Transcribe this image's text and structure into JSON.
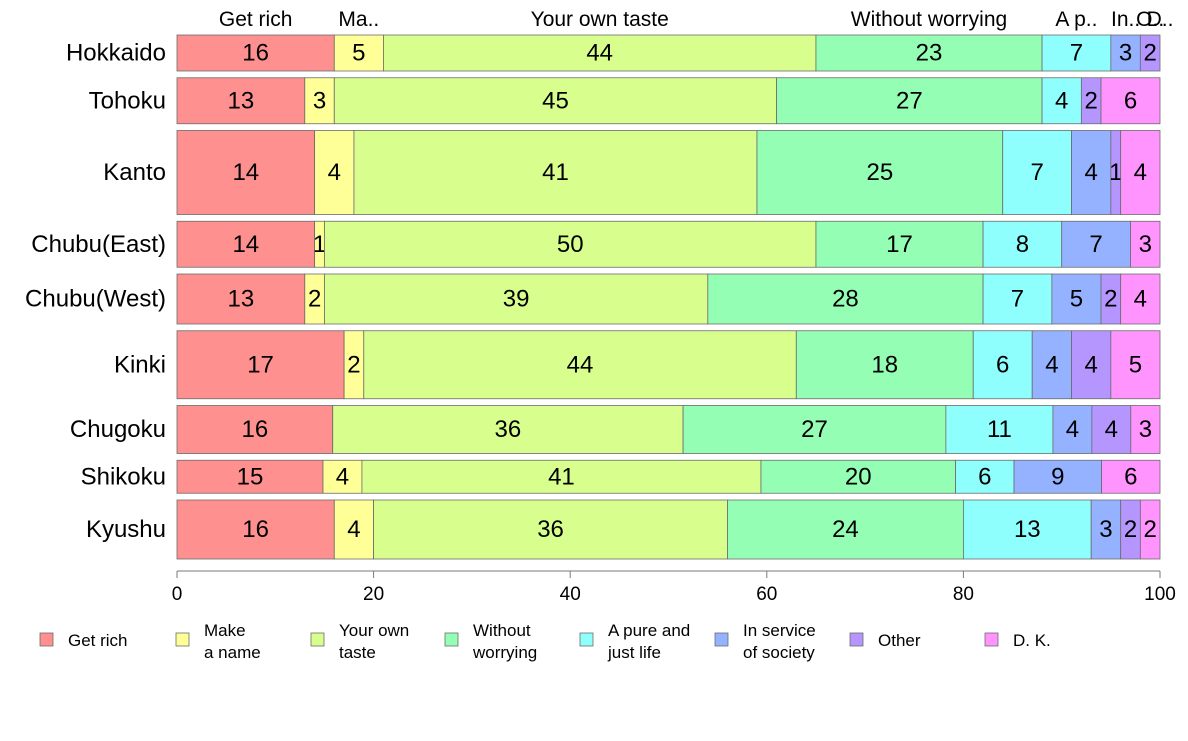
{
  "chart_data": {
    "type": "bar",
    "orientation": "horizontal",
    "stacked": true,
    "categories": [
      "Hokkaido",
      "Tohoku",
      "Kanto",
      "Chubu(East)",
      "Chubu(West)",
      "Kinki",
      "Chugoku",
      "Shikoku",
      "Kyushu"
    ],
    "series": [
      {
        "name": "Get rich",
        "legend": [
          "Get rich"
        ],
        "top_label": "Get rich",
        "color": "#ff9090",
        "values": [
          16,
          13,
          14,
          14,
          13,
          17,
          16,
          15,
          16
        ]
      },
      {
        "name": "Make a name",
        "legend": [
          "Make",
          "a name"
        ],
        "top_label": "Ma..",
        "color": "#ffff98",
        "values": [
          5,
          3,
          4,
          1,
          2,
          2,
          0,
          4,
          4
        ]
      },
      {
        "name": "Your own taste",
        "legend": [
          "Your own",
          "taste"
        ],
        "top_label": "Your own taste",
        "color": "#d8ff8e",
        "values": [
          44,
          45,
          41,
          50,
          39,
          44,
          36,
          41,
          36
        ]
      },
      {
        "name": "Without worrying",
        "legend": [
          "Without",
          "worrying"
        ],
        "top_label": "Without worrying",
        "color": "#94ffb4",
        "values": [
          23,
          27,
          25,
          17,
          28,
          18,
          27,
          20,
          24
        ]
      },
      {
        "name": "A pure and just life",
        "legend": [
          "A pure and",
          "just life"
        ],
        "top_label": "A p..",
        "color": "#8ffffe",
        "values": [
          7,
          4,
          7,
          8,
          7,
          6,
          11,
          6,
          13
        ]
      },
      {
        "name": "In service of society",
        "legend": [
          "In service",
          "of society"
        ],
        "top_label": "In..",
        "color": "#94b2ff",
        "values": [
          3,
          0,
          4,
          7,
          5,
          4,
          4,
          9,
          3
        ]
      },
      {
        "name": "Other",
        "legend": [
          "Other"
        ],
        "top_label": "O..",
        "color": "#b596ff",
        "values": [
          2,
          2,
          1,
          0,
          2,
          4,
          4,
          0,
          2
        ]
      },
      {
        "name": "D. K.",
        "legend": [
          "D. K."
        ],
        "top_label": "D..",
        "color": "#ff94ff",
        "values": [
          0,
          6,
          4,
          3,
          4,
          5,
          3,
          6,
          2
        ]
      }
    ],
    "bar_heights": [
      36,
      46,
      84,
      46,
      50,
      68,
      48,
      33,
      59
    ],
    "xlim": [
      0,
      100
    ],
    "xticks": [
      0,
      20,
      40,
      60,
      80,
      100
    ],
    "legend_position": "bottom",
    "grid": false,
    "xlabel": "",
    "ylabel": "",
    "title": ""
  }
}
